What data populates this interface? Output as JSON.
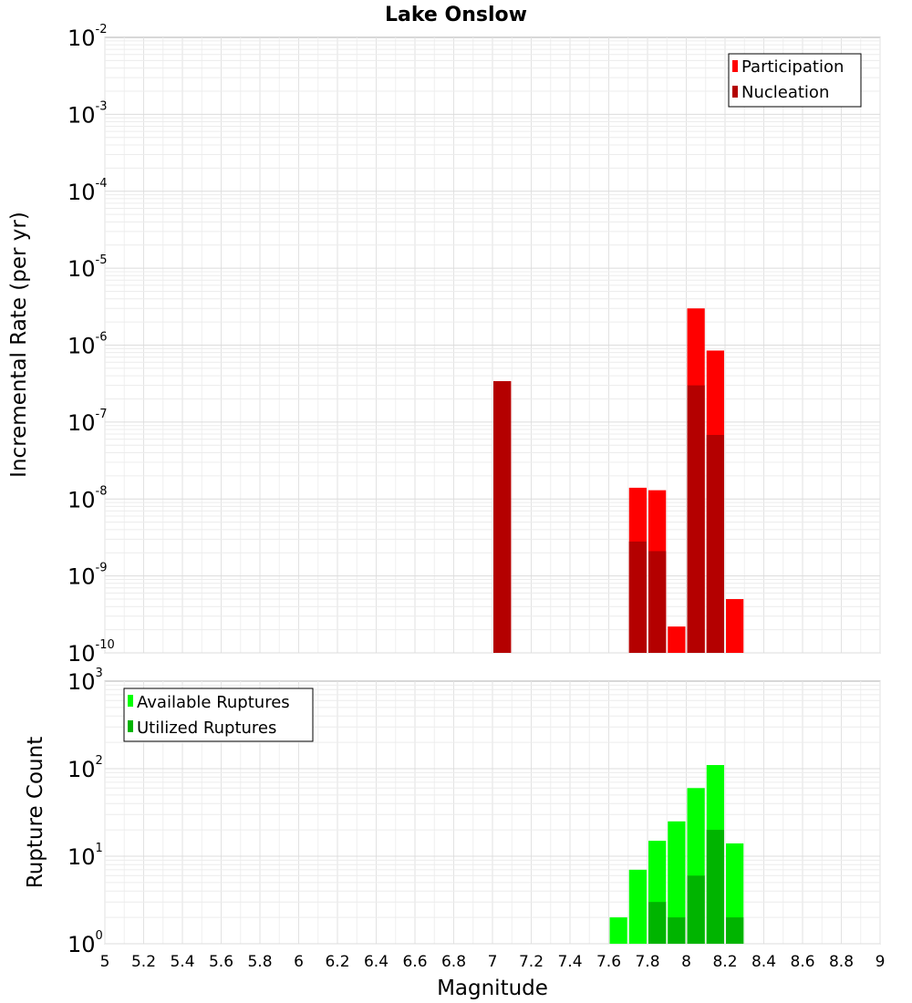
{
  "title": "Lake Onslow",
  "chart_data": [
    {
      "type": "bar",
      "name_key": "rate",
      "ylabel": "Incremental Rate (per yr)",
      "xlabel": "",
      "yscale": "log",
      "ylim_exp": [
        -10,
        -2
      ],
      "xlim": [
        5,
        9
      ],
      "legend_position": "top-right",
      "grid": true,
      "bin_width": 0.1,
      "series": [
        {
          "name": "Participation",
          "color": "#ff0000",
          "x": [
            7.05,
            7.75,
            7.85,
            7.95,
            8.05,
            8.15,
            8.25
          ],
          "values": [
            3.4e-07,
            1.4e-08,
            1.3e-08,
            2.2e-10,
            3e-06,
            8.5e-07,
            5e-10
          ]
        },
        {
          "name": "Nucleation",
          "color": "#b40000",
          "x": [
            7.05,
            7.75,
            7.85,
            8.05,
            8.15
          ],
          "values": [
            3.4e-07,
            2.8e-09,
            2.1e-09,
            3e-07,
            6.8e-08
          ]
        }
      ]
    },
    {
      "type": "bar",
      "name_key": "count",
      "ylabel": "Rupture Count",
      "xlabel": "Magnitude",
      "yscale": "log",
      "ylim_exp": [
        0,
        3
      ],
      "xlim": [
        5,
        9
      ],
      "legend_position": "top-left",
      "grid": true,
      "bin_width": 0.1,
      "series": [
        {
          "name": "Available Ruptures",
          "color": "#00ff00",
          "x": [
            7.05,
            7.45,
            7.55,
            7.65,
            7.75,
            7.85,
            7.95,
            8.05,
            8.15,
            8.25
          ],
          "values": [
            1,
            1,
            1,
            2,
            7,
            15,
            25,
            60,
            110,
            14
          ]
        },
        {
          "name": "Utilized Ruptures",
          "color": "#00b400",
          "x": [
            7.05,
            7.65,
            7.75,
            7.85,
            7.95,
            8.05,
            8.15,
            8.25
          ],
          "values": [
            1,
            1,
            1,
            3,
            2,
            6,
            20,
            2
          ]
        }
      ]
    }
  ],
  "x_ticks": [
    "5",
    "5.2",
    "5.4",
    "5.6",
    "5.8",
    "6",
    "6.2",
    "6.4",
    "6.6",
    "6.8",
    "7",
    "7.2",
    "7.4",
    "7.6",
    "7.8",
    "8",
    "8.2",
    "8.4",
    "8.6",
    "8.8",
    "9"
  ],
  "y_tick_base": "10"
}
